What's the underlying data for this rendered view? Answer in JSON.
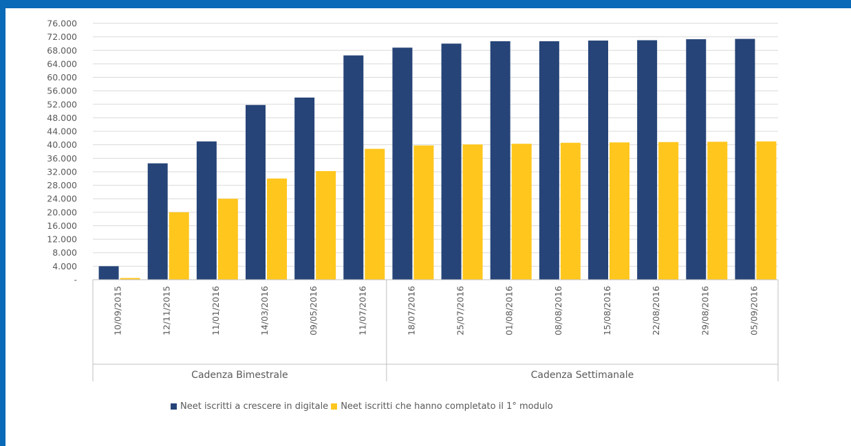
{
  "chart_data": {
    "type": "bar",
    "categories": [
      "10/09/2015",
      "12/11/2015",
      "11/01/2016",
      "14/03/2016",
      "09/05/2016",
      "11/07/2016",
      "18/07/2016",
      "25/07/2016",
      "01/08/2016",
      "08/08/2016",
      "15/08/2016",
      "22/08/2016",
      "29/08/2016",
      "05/09/2016"
    ],
    "series": [
      {
        "name": "Neet iscritti a crescere in digitale",
        "color": "#264478",
        "values": [
          4000,
          34500,
          41000,
          51800,
          54000,
          66500,
          68800,
          70000,
          70700,
          70700,
          70900,
          71000,
          71300,
          71400
        ]
      },
      {
        "name": "Neet iscritti che hanno completato il 1° modulo",
        "color": "#ffc61d",
        "values": [
          500,
          20000,
          24000,
          30000,
          32200,
          38800,
          39800,
          40100,
          40300,
          40600,
          40700,
          40800,
          40900,
          41000
        ]
      }
    ],
    "yticks": [
      "-",
      "4.000",
      "8.000",
      "12.000",
      "16.000",
      "20.000",
      "24.000",
      "28.000",
      "32.000",
      "36.000",
      "40.000",
      "44.000",
      "48.000",
      "52.000",
      "56.000",
      "60.000",
      "64.000",
      "68.000",
      "72.000",
      "76.000"
    ],
    "ylim": [
      0,
      76000
    ],
    "ytick_step": 4000,
    "groups": [
      {
        "label": "Cadenza Bimestrale",
        "span": 6
      },
      {
        "label": "Cadenza Settimanale",
        "span": 8
      }
    ],
    "grid": true,
    "legend_position": "bottom"
  }
}
